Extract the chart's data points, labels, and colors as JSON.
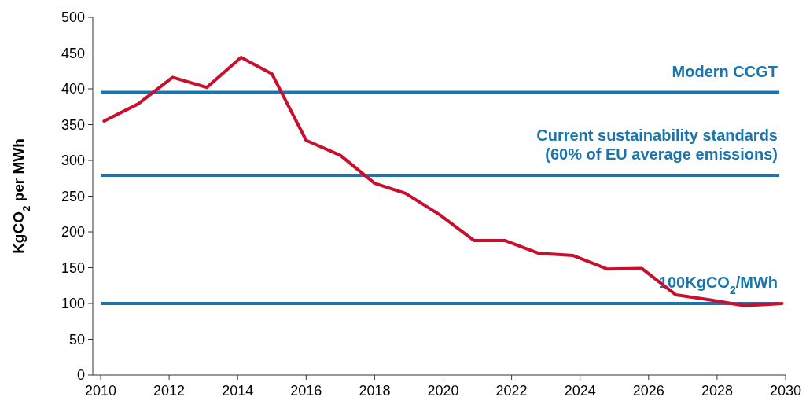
{
  "chart_data": {
    "type": "line",
    "ylabel": "KgCO$_{2}$ per MWh",
    "xlim": [
      2010,
      2030
    ],
    "xticks": [
      2010,
      2012,
      2014,
      2016,
      2018,
      2020,
      2022,
      2024,
      2026,
      2028,
      2030
    ],
    "ylim": [
      0,
      500
    ],
    "yticks": [
      0,
      50,
      100,
      150,
      200,
      250,
      300,
      350,
      400,
      450,
      500
    ],
    "grid": false,
    "marker": "none",
    "line_style": "solid",
    "series": [
      {
        "color": "#c8102e",
        "x": [
          2010.1,
          2011.1,
          2012.1,
          2013.1,
          2014.1,
          2015,
          2016,
          2017,
          2018,
          2018.9,
          2019.9,
          2020.9,
          2021.8,
          2022.8,
          2023.8,
          2024.8,
          2025.8,
          2026.8,
          2027.8,
          2028.8,
          2029.9
        ],
        "values": [
          355,
          379,
          416,
          402,
          444,
          421,
          328,
          307,
          268,
          254,
          224,
          188,
          188,
          170,
          167,
          148,
          149,
          112,
          105,
          97,
          100
        ]
      }
    ],
    "ref_lines": [
      {
        "axis": "y",
        "value": 395,
        "label": "Modern CCGT",
        "color": "#1b75ac"
      },
      {
        "axis": "y",
        "value": 279,
        "label": "Current sustainability standards\n(60% of EU average emissions)",
        "color": "#1b75ac"
      },
      {
        "axis": "y",
        "value": 100,
        "label": "100KgCO$_{2}$/MWh",
        "color": "#1b75ac"
      }
    ]
  }
}
